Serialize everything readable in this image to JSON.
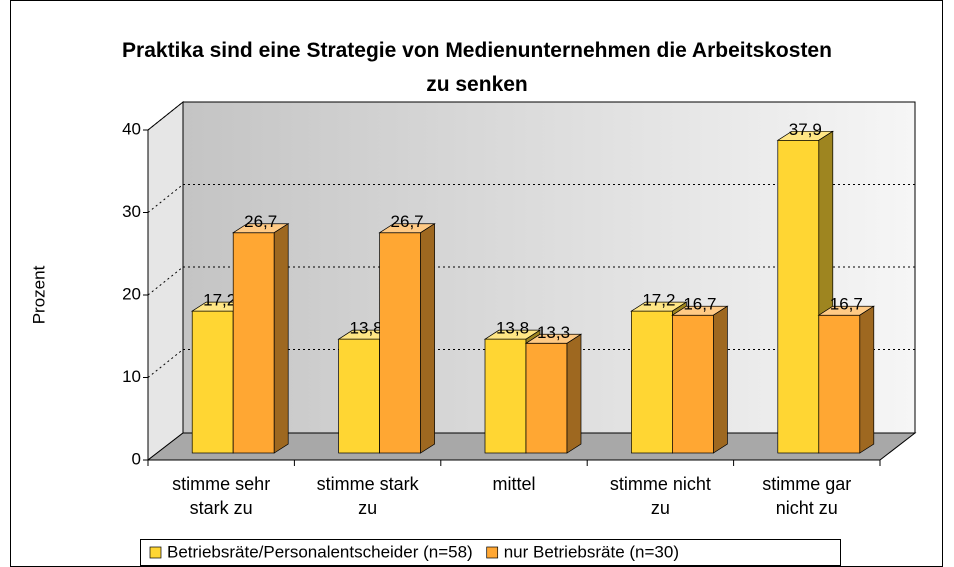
{
  "chart_data": {
    "type": "bar",
    "title": "Praktika sind eine Strategie von Medienunternehmen die Arbeitskosten zu senken",
    "y_label": "Prozent",
    "categories": [
      "stimme sehr stark zu",
      "stimme stark zu",
      "mittel",
      "stimme nicht zu",
      "stimme gar nicht zu"
    ],
    "series": [
      {
        "name": "Betriebsräte/Personalentscheider (n=58)",
        "color": "#FFD633",
        "values": [
          17.2,
          13.8,
          13.8,
          17.2,
          37.9
        ],
        "value_labels": [
          "17,2",
          "13,8",
          "13,8",
          "17,2",
          "37,9"
        ]
      },
      {
        "name": "nur Betriebsräte (n=30)",
        "color": "#FFA733",
        "values": [
          26.7,
          26.7,
          13.3,
          16.7,
          16.7
        ],
        "value_labels": [
          "26,7",
          "26,7",
          "13,3",
          "16,7",
          "16,7"
        ]
      }
    ],
    "ylim": [
      0,
      40
    ],
    "yticks": [
      0,
      10,
      20,
      30,
      40
    ],
    "grid": true,
    "legend": "bottom"
  }
}
